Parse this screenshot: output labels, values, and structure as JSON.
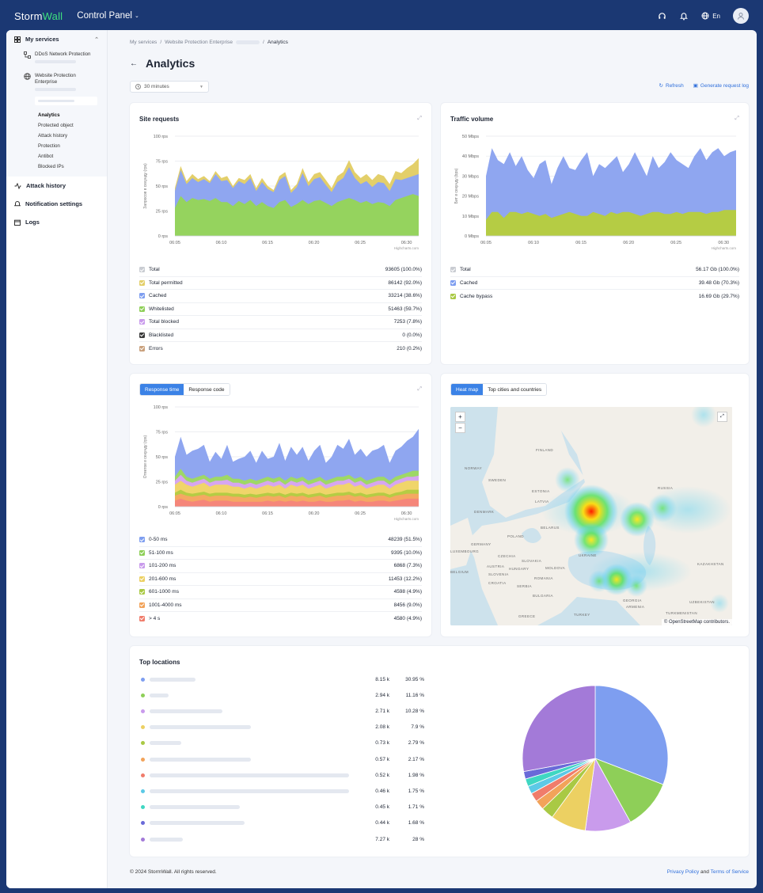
{
  "app": {
    "logo_storm": "Storm",
    "logo_wall": "Wall",
    "title": "Control Panel",
    "lang": "En"
  },
  "sidebar": {
    "my_services": "My services",
    "services": [
      {
        "label": "DDoS Network Protection"
      },
      {
        "label": "Website Protection Enterprise"
      }
    ],
    "sub_items": [
      "Analytics",
      "Protected object",
      "Attack history",
      "Protection",
      "Antibot",
      "Blocked IPs"
    ],
    "items": [
      "Attack history",
      "Notification settings",
      "Logs"
    ]
  },
  "breadcrumb": {
    "b1": "My services",
    "b2": "Website Protection Enterprise",
    "b3": "Analytics"
  },
  "page": {
    "title": "Analytics",
    "period": "30 minutes",
    "refresh": "Refresh",
    "gen_log": "Generate request log"
  },
  "site_requests": {
    "title": "Site requests",
    "y_axis": "Запросов в секунду (rps)",
    "credit": "Highcharts.com",
    "legend": [
      {
        "label": "Total",
        "value": "93605 (100.0%)",
        "color": "#c9ccd2"
      },
      {
        "label": "Total permitted",
        "value": "86142 (92.0%)",
        "color": "#e3cf6a"
      },
      {
        "label": "Cached",
        "value": "33214 (38.6%)",
        "color": "#7e9ef0"
      },
      {
        "label": "Whitelisted",
        "value": "51463 (59.7%)",
        "color": "#8ecf58"
      },
      {
        "label": "Total blocked",
        "value": "7253 (7.8%)",
        "color": "#c99bec"
      },
      {
        "label": "Blacklisted",
        "value": "0 (0.0%)",
        "color": "#3a3a3a"
      },
      {
        "label": "Errors",
        "value": "210 (0.2%)",
        "color": "#c9a07c"
      }
    ]
  },
  "traffic": {
    "title": "Traffic volume",
    "y_axis": "Бит в секунду (bps)",
    "credit": "Highcharts.com",
    "legend": [
      {
        "label": "Total",
        "value": "56.17 Gb (100.0%)",
        "color": "#c9ccd2"
      },
      {
        "label": "Cached",
        "value": "39.48 Gb (70.3%)",
        "color": "#7e9ef0"
      },
      {
        "label": "Cache bypass",
        "value": "16.69 Gb (29.7%)",
        "color": "#a9c944"
      }
    ]
  },
  "response": {
    "tab1": "Response time",
    "tab2": "Response code",
    "y_axis": "Ответов в секунду (rps)",
    "credit": "Highcharts.com",
    "legend": [
      {
        "label": "0-50 ms",
        "value": "48239 (51.5%)",
        "color": "#7e9ef0"
      },
      {
        "label": "51-100 ms",
        "value": "9395 (10.0%)",
        "color": "#8ecf58"
      },
      {
        "label": "101-200 ms",
        "value": "6868 (7.3%)",
        "color": "#c99bec"
      },
      {
        "label": "201-600 ms",
        "value": "11453 (12.2%)",
        "color": "#ecd062"
      },
      {
        "label": "601-1000 ms",
        "value": "4598 (4.9%)",
        "color": "#a9c944"
      },
      {
        "label": "1001-4000 ms",
        "value": "8456 (9.0%)",
        "color": "#f2a35a"
      },
      {
        "label": "> 4 s",
        "value": "4580 (4.9%)",
        "color": "#f07c6b"
      }
    ]
  },
  "heatmap": {
    "tab1": "Heat map",
    "tab2": "Top cities and countries",
    "zoom_in": "+",
    "zoom_out": "−",
    "attribution": "© OpenStreetMap contributors.",
    "countries": [
      "FINLAND",
      "NORWAY",
      "SWEDEN",
      "ESTONIA",
      "LATVIA",
      "DENMARK",
      "BELARUS",
      "POLAND",
      "GERMANY",
      "LUXEMBOURG",
      "CZECHIA",
      "UKRAINE",
      "AUSTRIA",
      "SLOVAKIA",
      "HUNGARY",
      "MOLDOVA",
      "SLOVENIA",
      "CROATIA",
      "ROMANIA",
      "SERBIA",
      "BULGARIA",
      "GREECE",
      "TURKEY",
      "GEORGIA",
      "ARMENIA",
      "KAZAKHSTAN",
      "UZBEKISTAN",
      "TURKMENISTAN",
      "RUSSIA",
      "BELGIUM"
    ]
  },
  "top_locations": {
    "title": "Top locations",
    "rows": [
      {
        "count": "8.15 k",
        "pct": "30.95 %",
        "color": "#7e9ef0"
      },
      {
        "count": "2.94 k",
        "pct": "11.16 %",
        "color": "#8ecf58"
      },
      {
        "count": "2.71 k",
        "pct": "10.28 %",
        "color": "#c99bec"
      },
      {
        "count": "2.08 k",
        "pct": "7.9 %",
        "color": "#ecd062"
      },
      {
        "count": "0.73 k",
        "pct": "2.79 %",
        "color": "#a9c944"
      },
      {
        "count": "0.57 k",
        "pct": "2.17 %",
        "color": "#f2a35a"
      },
      {
        "count": "0.52 k",
        "pct": "1.98 %",
        "color": "#f07c6b"
      },
      {
        "count": "0.46 k",
        "pct": "1.75 %",
        "color": "#5cc9e6"
      },
      {
        "count": "0.45 k",
        "pct": "1.71 %",
        "color": "#3fd7c2"
      },
      {
        "count": "0.44 k",
        "pct": "1.68 %",
        "color": "#6a6ad8"
      },
      {
        "count": "7.27 k",
        "pct": "28 %",
        "color": "#a37ad8"
      }
    ]
  },
  "footer": {
    "copyright": "© 2024 StormWall. All rights reserved.",
    "privacy": "Privacy Policy",
    "and": " and ",
    "terms": "Terms of Service"
  },
  "chart_data": [
    {
      "type": "area",
      "title": "Site requests",
      "ylabel": "Запросов в секунду (rps)",
      "x_ticks": [
        "06:05",
        "06:10",
        "06:15",
        "06:20",
        "06:25",
        "06:30"
      ],
      "y_ticks": [
        "0 rps",
        "25 rps",
        "50 rps",
        "75 rps",
        "100 rps"
      ],
      "ylim": [
        0,
        100
      ],
      "series": [
        {
          "name": "Total permitted",
          "values": [
            48,
            70,
            55,
            62,
            57,
            60,
            55,
            65,
            58,
            60,
            50,
            58,
            56,
            62,
            48,
            58,
            50,
            46,
            60,
            64,
            46,
            52,
            68,
            54,
            62,
            64,
            56,
            48,
            60,
            64,
            76,
            64,
            58,
            62,
            56,
            62,
            60,
            52,
            65,
            63,
            68,
            72,
            78
          ]
        },
        {
          "name": "Cached",
          "values": [
            45,
            66,
            52,
            58,
            54,
            57,
            53,
            62,
            55,
            56,
            48,
            55,
            52,
            58,
            45,
            54,
            47,
            44,
            56,
            60,
            43,
            49,
            63,
            50,
            57,
            59,
            51,
            44,
            54,
            58,
            69,
            58,
            52,
            55,
            49,
            54,
            53,
            45,
            57,
            56,
            58,
            60,
            62
          ]
        },
        {
          "name": "Whitelisted",
          "values": [
            28,
            40,
            34,
            38,
            36,
            37,
            35,
            38,
            34,
            34,
            30,
            35,
            32,
            36,
            30,
            34,
            30,
            28,
            34,
            36,
            29,
            32,
            36,
            32,
            35,
            36,
            33,
            30,
            34,
            36,
            38,
            36,
            33,
            35,
            32,
            34,
            33,
            30,
            36,
            38,
            40,
            42,
            40
          ]
        }
      ]
    },
    {
      "type": "area",
      "title": "Traffic volume",
      "ylabel": "Бит в секунду (bps)",
      "x_ticks": [
        "06:05",
        "06:10",
        "06:15",
        "06:20",
        "06:25",
        "06:30"
      ],
      "y_ticks": [
        "0 Mbps",
        "10 Mbps",
        "20 Mbps",
        "30 Mbps",
        "40 Mbps",
        "50 Mbps"
      ],
      "ylim": [
        0,
        50
      ],
      "series": [
        {
          "name": "Total",
          "values": [
            30,
            44,
            38,
            36,
            42,
            35,
            40,
            33,
            29,
            36,
            38,
            26,
            34,
            40,
            34,
            33,
            38,
            42,
            30,
            36,
            34,
            37,
            40,
            32,
            36,
            42,
            36,
            30,
            40,
            34,
            37,
            42,
            38,
            36,
            34,
            40,
            44,
            38,
            42,
            44,
            40,
            42,
            43
          ]
        },
        {
          "name": "Cache bypass",
          "values": [
            8,
            12,
            12,
            9,
            12,
            12,
            11,
            12,
            11,
            10,
            11,
            9,
            10,
            11,
            12,
            11,
            10,
            10,
            12,
            11,
            10,
            12,
            11,
            12,
            12,
            11,
            10,
            11,
            12,
            12,
            11,
            11,
            12,
            11,
            12,
            12,
            12,
            11,
            12,
            12,
            13,
            13,
            13
          ]
        }
      ]
    },
    {
      "type": "area",
      "title": "Response time",
      "ylabel": "Ответов в секунду (rps)",
      "x_ticks": [
        "06:05",
        "06:10",
        "06:15",
        "06:20",
        "06:25",
        "06:30"
      ],
      "y_ticks": [
        "0 rps",
        "25 rps",
        "50 rps",
        "75 rps",
        "100 rps"
      ],
      "ylim": [
        0,
        100
      ],
      "series": [
        {
          "name": "0-50 ms",
          "values": [
            50,
            70,
            52,
            56,
            58,
            62,
            45,
            55,
            48,
            62,
            45,
            48,
            50,
            56,
            44,
            56,
            48,
            50,
            64,
            46,
            60,
            52,
            60,
            46,
            56,
            62,
            44,
            50,
            62,
            58,
            68,
            52,
            58,
            50,
            56,
            58,
            62,
            44,
            56,
            60,
            66,
            70,
            78
          ]
        },
        {
          "name": "51-100 ms",
          "values": [
            30,
            38,
            30,
            28,
            30,
            32,
            28,
            30,
            30,
            32,
            28,
            28,
            26,
            28,
            26,
            28,
            30,
            28,
            30,
            26,
            30,
            28,
            30,
            26,
            28,
            30,
            26,
            28,
            30,
            30,
            32,
            28,
            30,
            26,
            28,
            30,
            30,
            26,
            30,
            32,
            34,
            36,
            36
          ]
        },
        {
          "name": "101-200 ms",
          "values": [
            26,
            32,
            26,
            24,
            26,
            28,
            24,
            26,
            26,
            27,
            24,
            24,
            22,
            24,
            22,
            24,
            26,
            24,
            26,
            22,
            26,
            24,
            26,
            22,
            24,
            26,
            22,
            24,
            26,
            26,
            28,
            24,
            26,
            22,
            24,
            26,
            26,
            22,
            26,
            28,
            30,
            30,
            31
          ]
        },
        {
          "name": "201-600 ms",
          "values": [
            22,
            26,
            22,
            20,
            22,
            24,
            20,
            22,
            22,
            22,
            20,
            20,
            18,
            20,
            18,
            20,
            22,
            20,
            22,
            18,
            22,
            20,
            22,
            18,
            20,
            22,
            18,
            20,
            22,
            22,
            24,
            20,
            22,
            18,
            20,
            22,
            22,
            18,
            22,
            24,
            26,
            26,
            26
          ]
        },
        {
          "name": "601-1000 ms",
          "values": [
            14,
            17,
            14,
            13,
            14,
            15,
            13,
            14,
            14,
            14,
            13,
            13,
            12,
            13,
            12,
            13,
            14,
            13,
            14,
            12,
            14,
            13,
            14,
            12,
            13,
            14,
            12,
            13,
            14,
            14,
            15,
            13,
            14,
            12,
            13,
            14,
            14,
            12,
            14,
            15,
            17,
            17,
            17
          ]
        },
        {
          "name": "1001-4000 ms",
          "values": [
            11,
            13,
            11,
            10,
            11,
            12,
            10,
            11,
            11,
            11,
            10,
            10,
            9,
            10,
            9,
            10,
            11,
            10,
            11,
            9,
            11,
            10,
            11,
            9,
            10,
            11,
            9,
            10,
            11,
            11,
            12,
            10,
            11,
            9,
            10,
            11,
            11,
            9,
            11,
            12,
            13,
            13,
            13
          ]
        },
        {
          "name": "> 4 s",
          "values": [
            6,
            8,
            6,
            5,
            6,
            7,
            5,
            6,
            6,
            6,
            5,
            5,
            5,
            5,
            5,
            5,
            6,
            5,
            6,
            5,
            6,
            5,
            6,
            5,
            5,
            6,
            5,
            5,
            6,
            6,
            7,
            5,
            6,
            5,
            5,
            6,
            6,
            5,
            6,
            7,
            8,
            8,
            8
          ]
        }
      ]
    },
    {
      "type": "pie",
      "title": "Top locations",
      "values": [
        30.95,
        11.16,
        10.28,
        7.9,
        2.79,
        2.17,
        1.98,
        1.75,
        1.71,
        1.68,
        28
      ]
    }
  ]
}
